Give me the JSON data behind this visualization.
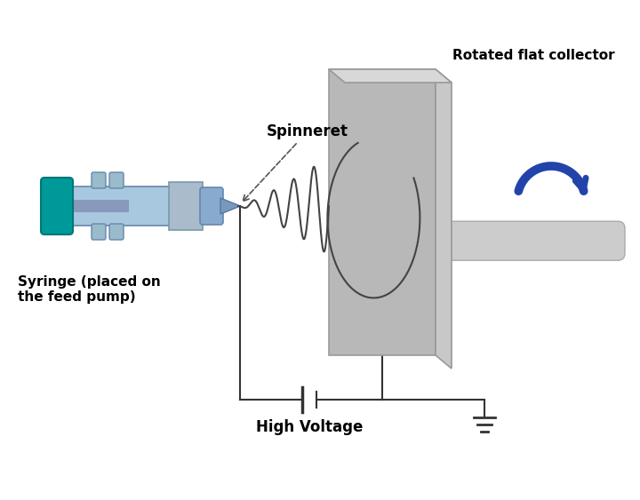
{
  "bg_color": "#ffffff",
  "label_spinneret": "Spinneret",
  "label_syringe": "Syringe (placed on\nthe feed pump)",
  "label_collector": "Rotated flat collector",
  "label_voltage": "High Voltage",
  "text_color": "#000000",
  "collector_front_color": "#b8b8b8",
  "collector_side_color": "#d0d0d0",
  "collector_edge_color": "#999999",
  "wire_color": "#333333",
  "arrow_color": "#2244aa",
  "jet_color": "#444444",
  "rod_color": "#cccccc",
  "rod_edge_color": "#aaaaaa"
}
